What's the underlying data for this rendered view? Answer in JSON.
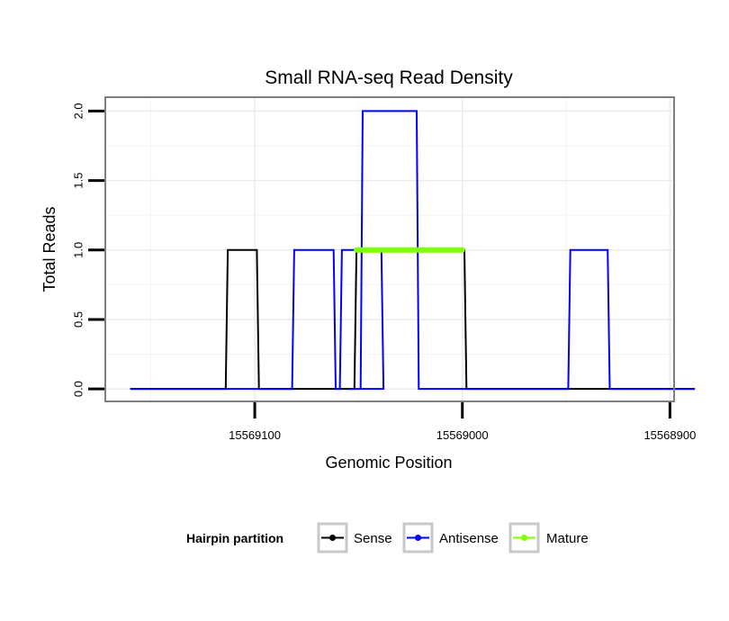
{
  "chart_data": {
    "type": "line",
    "title": "Small RNA-seq Read Density",
    "xlabel": "Genomic Position",
    "ylabel": "Total Reads",
    "xlim": [
      15569172,
      15568898
    ],
    "ylim": [
      -0.09,
      2.1
    ],
    "x_reversed": true,
    "grid": true,
    "x_ticks": [
      15569100,
      15569000,
      15568900
    ],
    "x_tick_labels": [
      "15569100",
      "15569000",
      "15568900"
    ],
    "y_ticks": [
      0.0,
      0.5,
      1.0,
      1.5,
      2.0
    ],
    "y_tick_labels": [
      "0.0",
      "0.5",
      "1.0",
      "1.5",
      "2.0"
    ],
    "legend": {
      "title": "Hairpin partition",
      "position": "bottom",
      "entries": [
        "Sense",
        "Antisense",
        "Mature"
      ]
    },
    "series": [
      {
        "name": "Sense",
        "color": "#000000",
        "x": [
          15569160,
          15569114,
          15569113,
          15569099,
          15569098,
          15569052,
          15569051,
          15568999,
          15568998,
          15568888
        ],
        "values": [
          0,
          0,
          1,
          1,
          0,
          0,
          1,
          1,
          0,
          0
        ]
      },
      {
        "name": "Antisense",
        "color": "#0000ff",
        "x": [
          15569160,
          15569082,
          15569081,
          15569062,
          15569061,
          15569059,
          15569058,
          15569039,
          15569038,
          15569055,
          15569055,
          15569049,
          15569048,
          15569022,
          15569021,
          15568998,
          15568997,
          15568949,
          15568948,
          15568930,
          15568929,
          15568888
        ],
        "values": [
          0,
          0,
          1,
          1,
          0,
          0,
          1,
          1,
          0,
          0,
          0,
          0,
          2,
          2,
          0,
          0,
          0,
          0,
          1,
          1,
          0,
          0
        ]
      },
      {
        "name": "Mature",
        "color": "#7fff00",
        "x": [
          15569051,
          15569000
        ],
        "values": [
          1,
          1
        ]
      }
    ]
  }
}
